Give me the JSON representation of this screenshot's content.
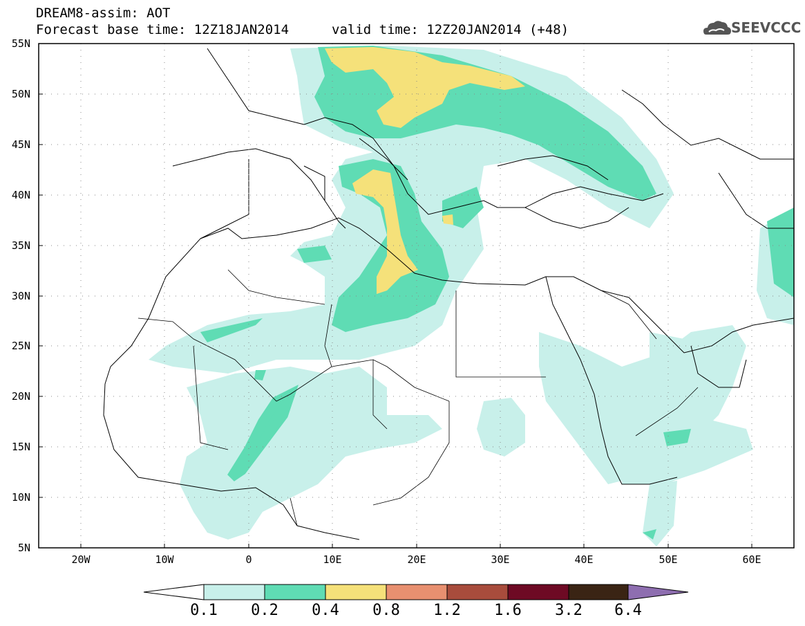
{
  "title": {
    "line1": "DREAM8-assim: AOT",
    "line2": "Forecast base time: 12Z18JAN2014",
    "line3": "valid time: 12Z20JAN2014 (+48)"
  },
  "logo": {
    "text": "SEEVCCC",
    "icon": "cloud-icon"
  },
  "map": {
    "lat_range": [
      5,
      55
    ],
    "lon_range": [
      -25,
      65
    ],
    "lat_labels": [
      "55N",
      "50N",
      "45N",
      "40N",
      "35N",
      "30N",
      "25N",
      "20N",
      "15N",
      "10N",
      "5N"
    ],
    "lon_labels": [
      "20W",
      "10W",
      "0",
      "10E",
      "20E",
      "30E",
      "40E",
      "50E",
      "60E"
    ],
    "grid": "dotted"
  },
  "colorbar": {
    "levels": [
      "0.1",
      "0.2",
      "0.4",
      "0.8",
      "1.2",
      "1.6",
      "3.2",
      "6.4"
    ],
    "colors": [
      "#c8f0ea",
      "#5fdcb4",
      "#f5e17a",
      "#e89070",
      "#a84c3c",
      "#6e0a24",
      "#3a2414",
      "#8e6eb0"
    ],
    "extend": "both"
  }
}
